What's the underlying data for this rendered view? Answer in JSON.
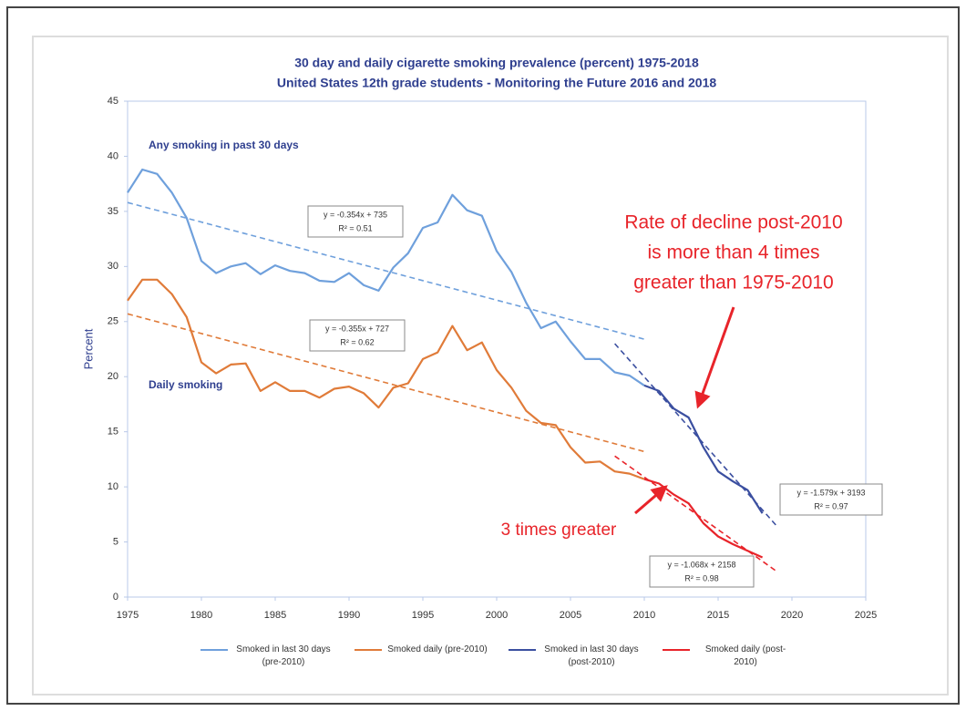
{
  "chart_data": {
    "type": "line",
    "title": "30 day and daily cigarette smoking prevalence (percent) 1975-2018",
    "subtitle": "United States 12th grade students - Monitoring the Future 2016 and 2018",
    "y_label": "Percent",
    "xlim": [
      1975,
      2025
    ],
    "xticks": [
      1975,
      1980,
      1985,
      1990,
      1995,
      2000,
      2005,
      2010,
      2015,
      2020,
      2025
    ],
    "ylim": [
      0,
      45
    ],
    "yticks": [
      0,
      5,
      10,
      15,
      20,
      25,
      30,
      35,
      40,
      45
    ],
    "grid": false,
    "legend": "bottom",
    "series": [
      {
        "name": "Smoked in last 30 days (pre-2010)",
        "color": "#6fa0dc",
        "x": [
          1975,
          1976,
          1977,
          1978,
          1979,
          1980,
          1981,
          1982,
          1983,
          1984,
          1985,
          1986,
          1987,
          1988,
          1989,
          1990,
          1991,
          1992,
          1993,
          1994,
          1995,
          1996,
          1997,
          1998,
          1999,
          2000,
          2001,
          2002,
          2003,
          2004,
          2005,
          2006,
          2007,
          2008,
          2009,
          2010
        ],
        "values": [
          36.7,
          38.8,
          38.4,
          36.7,
          34.4,
          30.5,
          29.4,
          30.0,
          30.3,
          29.3,
          30.1,
          29.6,
          29.4,
          28.7,
          28.6,
          29.4,
          28.3,
          27.8,
          29.9,
          31.2,
          33.5,
          34.0,
          36.5,
          35.1,
          34.6,
          31.4,
          29.5,
          26.7,
          24.4,
          25.0,
          23.2,
          21.6,
          21.6,
          20.4,
          20.1,
          19.2
        ]
      },
      {
        "name": "Smoked daily (pre-2010)",
        "color": "#e07b39",
        "x": [
          1975,
          1976,
          1977,
          1978,
          1979,
          1980,
          1981,
          1982,
          1983,
          1984,
          1985,
          1986,
          1987,
          1988,
          1989,
          1990,
          1991,
          1992,
          1993,
          1994,
          1995,
          1996,
          1997,
          1998,
          1999,
          2000,
          2001,
          2002,
          2003,
          2004,
          2005,
          2006,
          2007,
          2008,
          2009,
          2010
        ],
        "values": [
          26.9,
          28.8,
          28.8,
          27.5,
          25.4,
          21.3,
          20.3,
          21.1,
          21.2,
          18.7,
          19.5,
          18.7,
          18.7,
          18.1,
          18.9,
          19.1,
          18.5,
          17.2,
          19.0,
          19.4,
          21.6,
          22.2,
          24.6,
          22.4,
          23.1,
          20.6,
          19.0,
          16.9,
          15.8,
          15.6,
          13.6,
          12.2,
          12.3,
          11.4,
          11.2,
          10.7
        ]
      },
      {
        "name": "Smoked in last 30 days (post-2010)",
        "color": "#3b4fa0",
        "x": [
          2010,
          2011,
          2012,
          2013,
          2014,
          2015,
          2016,
          2017,
          2018
        ],
        "values": [
          19.2,
          18.7,
          17.1,
          16.3,
          13.6,
          11.4,
          10.5,
          9.7,
          7.6
        ]
      },
      {
        "name": "Smoked daily (post-2010)",
        "color": "#e8242a",
        "x": [
          2010,
          2011,
          2012,
          2013,
          2014,
          2015,
          2016,
          2017,
          2018
        ],
        "values": [
          10.7,
          10.3,
          9.3,
          8.5,
          6.7,
          5.5,
          4.8,
          4.2,
          3.6
        ]
      }
    ],
    "trendlines": [
      {
        "color": "#6fa0dc",
        "x": [
          1975,
          2010
        ],
        "values": [
          35.8,
          23.4
        ],
        "equation": "y = -0.354x + 735",
        "r2": "R² = 0.51"
      },
      {
        "color": "#e07b39",
        "x": [
          1975,
          2010
        ],
        "values": [
          25.7,
          13.2
        ],
        "equation": "y = -0.355x + 727",
        "r2": "R² = 0.62"
      },
      {
        "color": "#3b4fa0",
        "x": [
          2008,
          2019
        ],
        "values": [
          23.0,
          6.4
        ],
        "equation": "y = -1.579x + 3193",
        "r2": "R² = 0.97"
      },
      {
        "color": "#e8242a",
        "x": [
          2008,
          2019
        ],
        "values": [
          12.8,
          2.3
        ],
        "equation": "y = -1.068x + 2158",
        "r2": "R² = 0.98"
      }
    ],
    "annotations": {
      "any_smoking": "Any smoking in past 30 days",
      "daily_smoking": "Daily smoking",
      "rate_decline": [
        "Rate of decline post-2010",
        "is more than 4 times",
        "greater than 1975-2010"
      ],
      "three_times": "3 times greater"
    }
  }
}
